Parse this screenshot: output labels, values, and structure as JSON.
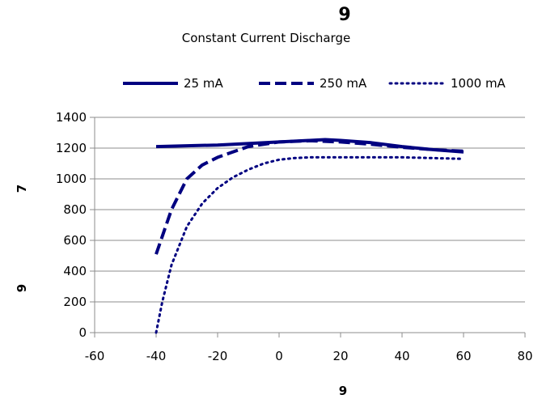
{
  "chart_data": {
    "type": "line",
    "title": "9",
    "subtitle": "Constant Current Discharge",
    "xlabel": "9",
    "ylabel_top": "7",
    "ylabel_bottom": "9",
    "xlim": [
      -60,
      80
    ],
    "ylim": [
      0,
      1400
    ],
    "xticks": [
      -60,
      -40,
      -20,
      0,
      20,
      40,
      60,
      80
    ],
    "yticks": [
      0,
      200,
      400,
      600,
      800,
      1000,
      1200,
      1400
    ],
    "grid": "horizontal",
    "legend_position": "top",
    "color": "#000080",
    "series": [
      {
        "name": "25 mA",
        "style": "solid",
        "x": [
          -40,
          -20,
          0,
          10,
          15,
          20,
          30,
          40,
          50,
          60
        ],
        "y": [
          1210,
          1220,
          1240,
          1250,
          1255,
          1250,
          1235,
          1210,
          1190,
          1175
        ]
      },
      {
        "name": "250 mA",
        "style": "dashed",
        "x": [
          -40,
          -35,
          -30,
          -25,
          -20,
          -10,
          0,
          10,
          20,
          30,
          40,
          50,
          60
        ],
        "y": [
          510,
          800,
          1000,
          1090,
          1140,
          1210,
          1240,
          1248,
          1240,
          1225,
          1205,
          1190,
          1180
        ]
      },
      {
        "name": "1000 mA",
        "style": "dotted",
        "x": [
          -40,
          -38,
          -35,
          -30,
          -25,
          -20,
          -15,
          -10,
          -5,
          0,
          5,
          10,
          20,
          30,
          40,
          50,
          60
        ],
        "y": [
          0,
          200,
          440,
          690,
          840,
          940,
          1010,
          1060,
          1100,
          1125,
          1135,
          1140,
          1140,
          1140,
          1140,
          1135,
          1130
        ]
      }
    ]
  }
}
